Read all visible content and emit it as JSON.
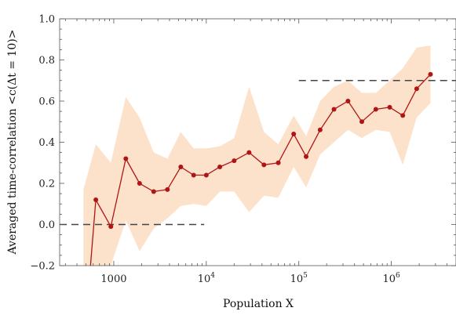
{
  "chart_data": {
    "type": "line",
    "x_scale": "log",
    "xlim": [
      260,
      5000000
    ],
    "ylim": [
      -0.2,
      1.0
    ],
    "xlabel": "Population X",
    "ylabel": "Averaged time-correlation <c(Δt = 10)>",
    "y_ticks": [
      "−0.2",
      "0.0",
      "0.2",
      "0.4",
      "0.6",
      "0.8",
      "1.0"
    ],
    "x_ticks": [
      {
        "value": 1000,
        "base": "1000",
        "exp": ""
      },
      {
        "value": 10000,
        "base": "10",
        "exp": "4"
      },
      {
        "value": 100000,
        "base": "10",
        "exp": "5"
      },
      {
        "value": 1000000,
        "base": "10",
        "exp": "6"
      }
    ],
    "grid": false,
    "colors": {
      "series": "#b01515",
      "band": "#fde2cb",
      "reference": "#444444"
    },
    "series": [
      {
        "x": [
          640,
          930,
          1350,
          1900,
          2700,
          3800,
          5300,
          7300,
          10000,
          14000,
          20000,
          29000,
          42000,
          60000,
          88000,
          120000,
          170000,
          240000,
          340000,
          480000,
          680000,
          960000,
          1330000,
          1880000,
          2650000
        ],
        "y": [
          0.12,
          -0.01,
          0.32,
          0.2,
          0.16,
          0.17,
          0.28,
          0.24,
          0.24,
          0.28,
          0.31,
          0.35,
          0.29,
          0.3,
          0.44,
          0.33,
          0.46,
          0.56,
          0.6,
          0.5,
          0.56,
          0.57,
          0.53,
          0.66,
          0.73
        ]
      }
    ],
    "band": {
      "x": [
        470,
        640,
        930,
        1350,
        1900,
        2700,
        3800,
        5300,
        7300,
        10000,
        14000,
        20000,
        29000,
        42000,
        60000,
        88000,
        120000,
        170000,
        240000,
        340000,
        480000,
        680000,
        960000,
        1330000,
        1880000,
        2650000
      ],
      "upper": [
        0.17,
        0.39,
        0.3,
        0.62,
        0.52,
        0.35,
        0.32,
        0.45,
        0.37,
        0.37,
        0.38,
        0.42,
        0.67,
        0.45,
        0.39,
        0.53,
        0.43,
        0.6,
        0.67,
        0.7,
        0.64,
        0.64,
        0.7,
        0.76,
        0.86,
        0.87
      ],
      "lower": [
        -0.2,
        -0.2,
        -0.2,
        0.02,
        -0.13,
        -0.02,
        0.03,
        0.09,
        0.1,
        0.09,
        0.16,
        0.16,
        0.06,
        0.14,
        0.13,
        0.28,
        0.18,
        0.34,
        0.4,
        0.46,
        0.42,
        0.46,
        0.45,
        0.29,
        0.52,
        0.59
      ]
    },
    "extra_point": {
      "x": 560,
      "y": -0.2
    },
    "reference_lines": [
      {
        "y": 0.0,
        "x_from": 260,
        "x_to": 9500
      },
      {
        "y": 0.7,
        "x_from": 100000,
        "x_to": 5000000
      }
    ]
  }
}
